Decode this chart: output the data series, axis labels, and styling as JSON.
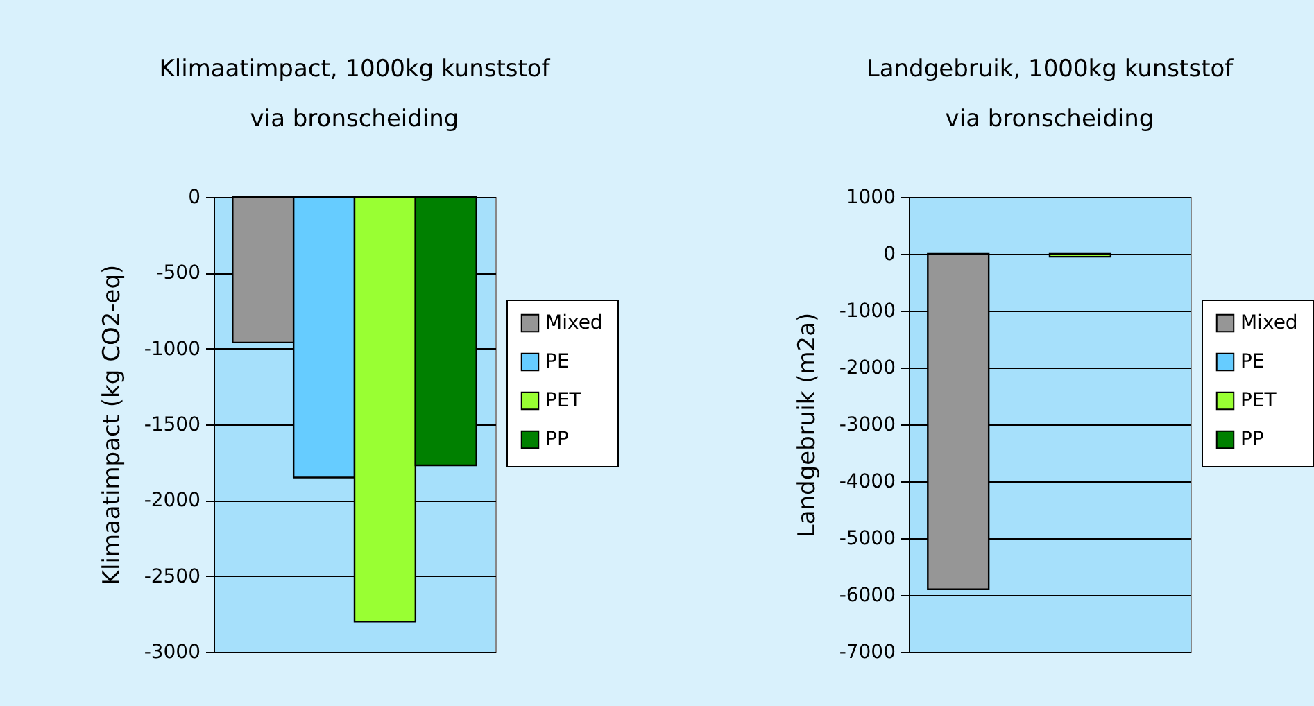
{
  "chart_data": [
    {
      "type": "bar",
      "title": "Klimaatimpact, 1000kg kunststof\nvia bronscheiding",
      "ylabel": "Klimaatimpact (kg CO2-eq)",
      "categories": [
        null
      ],
      "series": [
        {
          "name": "Mixed",
          "color": "#969696",
          "values": [
            -960
          ]
        },
        {
          "name": "PE",
          "color": "#66ccff",
          "values": [
            -1850
          ]
        },
        {
          "name": "PET",
          "color": "#99ff33",
          "values": [
            -2800
          ]
        },
        {
          "name": "PP",
          "color": "#008000",
          "values": [
            -1770
          ]
        }
      ],
      "ylim": [
        -3000,
        0
      ],
      "yticks": [
        -3000,
        -2500,
        -2000,
        -1500,
        -1000,
        -500,
        0
      ],
      "grid": "y",
      "legend": "right",
      "tick_labels": "y"
    },
    {
      "type": "bar",
      "title": "Landgebruik, 1000kg kunststof\nvia bronscheiding",
      "ylabel": "Landgebruik (m2a)",
      "categories": [
        null
      ],
      "series": [
        {
          "name": "Mixed",
          "color": "#969696",
          "values": [
            -5900
          ]
        },
        {
          "name": "PE",
          "color": "#66ccff",
          "values": [
            null
          ]
        },
        {
          "name": "PET",
          "color": "#99ff33",
          "values": [
            -50
          ]
        },
        {
          "name": "PP",
          "color": "#008000",
          "values": [
            null
          ]
        }
      ],
      "ylim": [
        -7000,
        1000
      ],
      "yticks": [
        -7000,
        -6000,
        -5000,
        -4000,
        -3000,
        -2000,
        -1000,
        0,
        1000
      ],
      "grid": "y",
      "legend": "right",
      "tick_labels": "y"
    }
  ]
}
